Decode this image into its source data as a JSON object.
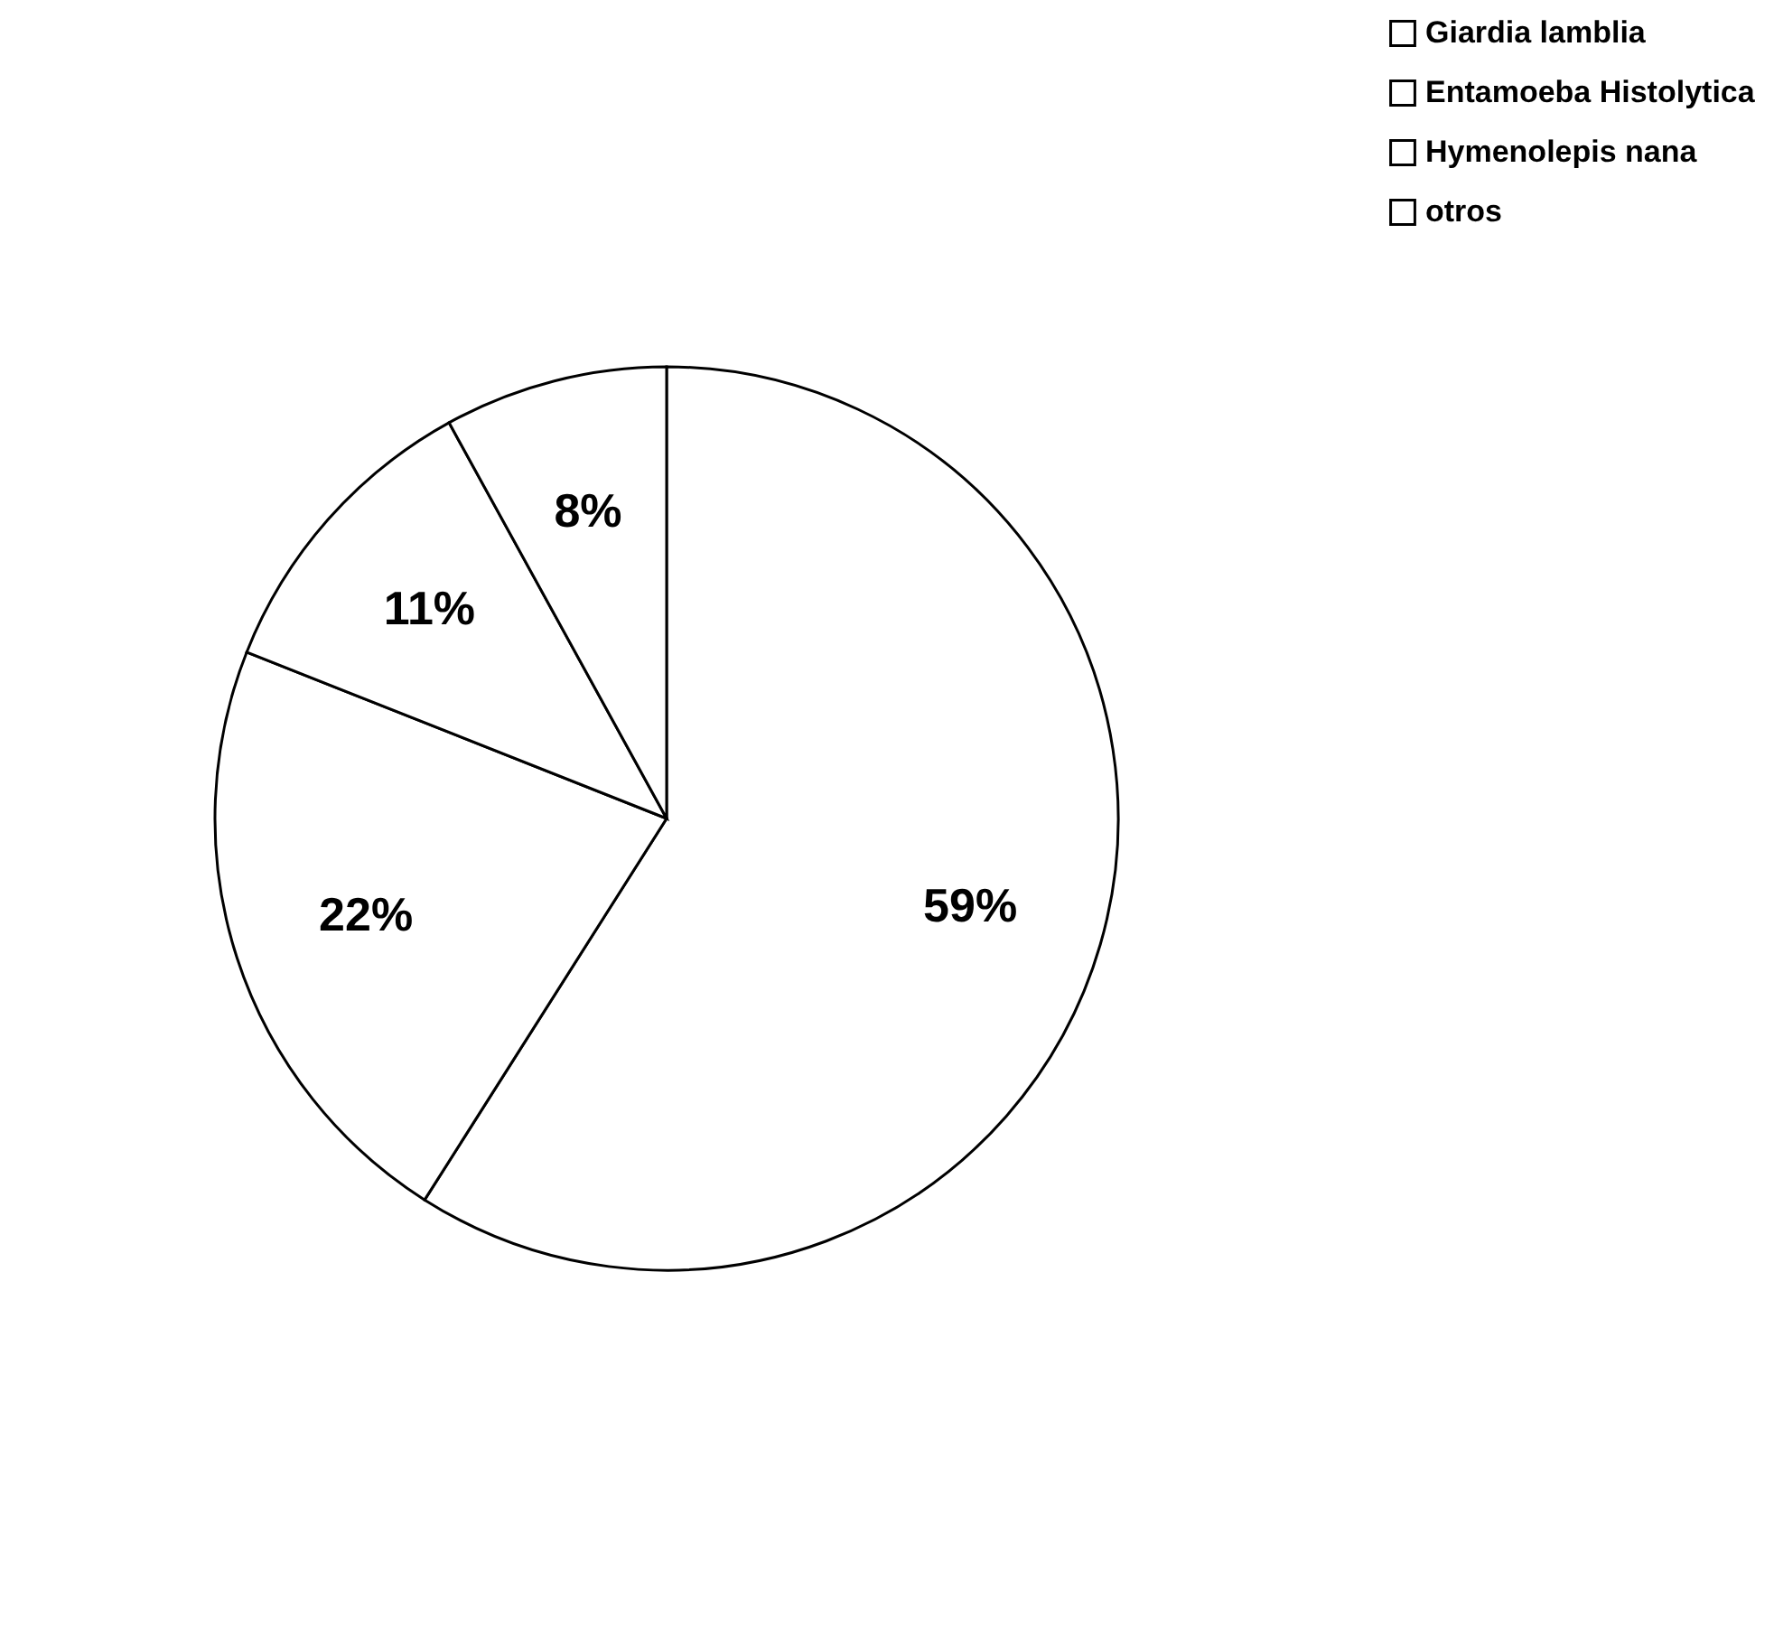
{
  "chart_data": {
    "type": "pie",
    "categories": [
      "Giardia lamblia",
      "Entamoeba Histolytica",
      "Hymenolepis nana",
      "otros"
    ],
    "values": [
      59,
      22,
      11,
      8
    ],
    "colors": [
      "#ffffff",
      "#ffffff",
      "#ffffff",
      "#ffffff"
    ],
    "value_labels": [
      "59%",
      "22%",
      "11%",
      "8%"
    ],
    "legend": "right"
  }
}
